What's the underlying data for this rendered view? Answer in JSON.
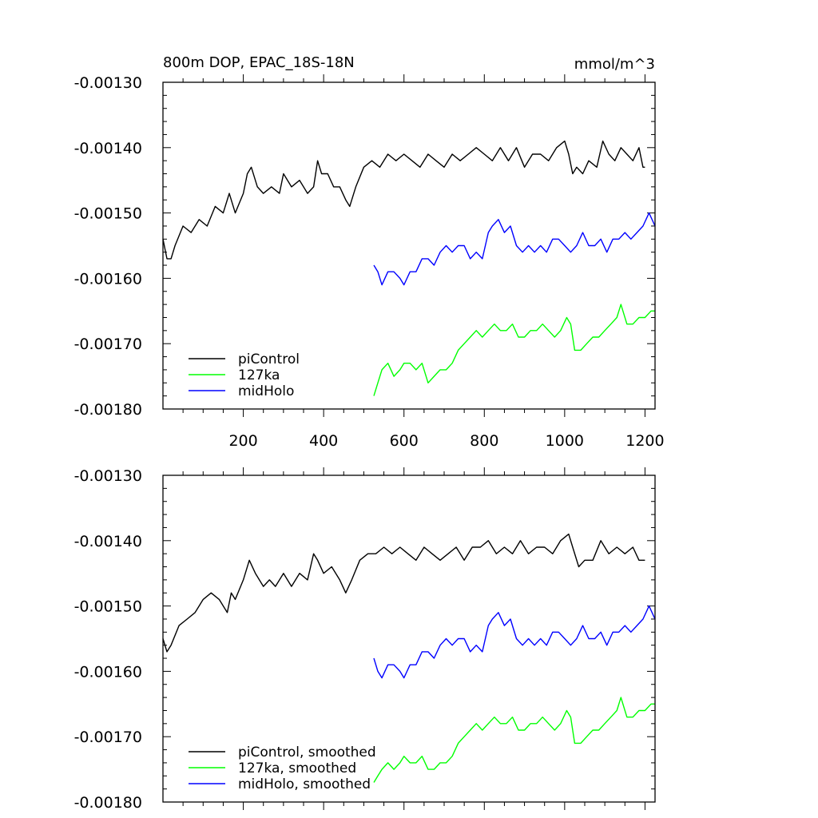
{
  "chart_data": [
    {
      "type": "line",
      "title_left": "800m DOP, EPAC_18S-18N",
      "title_right": "mmol/m^3",
      "xlim": [
        0,
        1225
      ],
      "ylim": [
        -0.0018,
        -0.0013
      ],
      "x_ticks": [
        200,
        400,
        600,
        800,
        1000,
        1200
      ],
      "x_tick_labels": [
        "200",
        "400",
        "600",
        "800",
        "1000",
        "1200"
      ],
      "y_ticks": [
        -0.0013,
        -0.0014,
        -0.0015,
        -0.0016,
        -0.0017,
        -0.0018
      ],
      "y_tick_labels": [
        "-0.00130",
        "-0.00140",
        "-0.00150",
        "-0.00160",
        "-0.00170",
        "-0.00180"
      ],
      "legend_position": "bottom-left",
      "series": [
        {
          "name": "piControl",
          "color": "#000000",
          "x": [
            0,
            10,
            20,
            30,
            50,
            70,
            90,
            110,
            130,
            150,
            165,
            180,
            200,
            210,
            220,
            235,
            250,
            270,
            290,
            300,
            320,
            340,
            360,
            375,
            385,
            395,
            410,
            425,
            440,
            455,
            465,
            480,
            500,
            520,
            540,
            560,
            580,
            600,
            620,
            640,
            660,
            680,
            700,
            720,
            740,
            760,
            780,
            800,
            820,
            840,
            860,
            880,
            900,
            920,
            940,
            960,
            980,
            1000,
            1010,
            1020,
            1030,
            1045,
            1060,
            1080,
            1095,
            1110,
            1125,
            1140,
            1155,
            1170,
            1185,
            1195,
            1200
          ],
          "values": [
            -0.00154,
            -0.00157,
            -0.00157,
            -0.00155,
            -0.00152,
            -0.00153,
            -0.00151,
            -0.00152,
            -0.00149,
            -0.0015,
            -0.00147,
            -0.0015,
            -0.00147,
            -0.00144,
            -0.00143,
            -0.00146,
            -0.00147,
            -0.00146,
            -0.00147,
            -0.00144,
            -0.00146,
            -0.00145,
            -0.00147,
            -0.00146,
            -0.00142,
            -0.00144,
            -0.00144,
            -0.00146,
            -0.00146,
            -0.00148,
            -0.00149,
            -0.00146,
            -0.00143,
            -0.00142,
            -0.00143,
            -0.00141,
            -0.00142,
            -0.00141,
            -0.00142,
            -0.00143,
            -0.00141,
            -0.00142,
            -0.00143,
            -0.00141,
            -0.00142,
            -0.00141,
            -0.0014,
            -0.00141,
            -0.00142,
            -0.0014,
            -0.00142,
            -0.0014,
            -0.00143,
            -0.00141,
            -0.00141,
            -0.00142,
            -0.0014,
            -0.00139,
            -0.00141,
            -0.00144,
            -0.00143,
            -0.00144,
            -0.00142,
            -0.00143,
            -0.00139,
            -0.00141,
            -0.00142,
            -0.0014,
            -0.00141,
            -0.00142,
            -0.0014,
            -0.00143,
            -0.00143
          ]
        },
        {
          "name": "midHolo",
          "color": "#0000ff",
          "x": [
            525,
            535,
            545,
            560,
            575,
            590,
            600,
            615,
            630,
            645,
            660,
            675,
            690,
            705,
            720,
            735,
            750,
            765,
            780,
            795,
            810,
            820,
            835,
            850,
            865,
            880,
            895,
            910,
            925,
            940,
            955,
            970,
            985,
            1000,
            1015,
            1030,
            1045,
            1060,
            1075,
            1090,
            1105,
            1120,
            1135,
            1150,
            1165,
            1180,
            1195,
            1210,
            1225
          ],
          "values": [
            -0.00158,
            -0.00159,
            -0.00161,
            -0.00159,
            -0.00159,
            -0.0016,
            -0.00161,
            -0.00159,
            -0.00159,
            -0.00157,
            -0.00157,
            -0.00158,
            -0.00156,
            -0.00155,
            -0.00156,
            -0.00155,
            -0.00155,
            -0.00157,
            -0.00156,
            -0.00157,
            -0.00153,
            -0.00152,
            -0.00151,
            -0.00153,
            -0.00152,
            -0.00155,
            -0.00156,
            -0.00155,
            -0.00156,
            -0.00155,
            -0.00156,
            -0.00154,
            -0.00154,
            -0.00155,
            -0.00156,
            -0.00155,
            -0.00153,
            -0.00155,
            -0.00155,
            -0.00154,
            -0.00156,
            -0.00154,
            -0.00154,
            -0.00153,
            -0.00154,
            -0.00153,
            -0.00152,
            -0.0015,
            -0.00152
          ]
        },
        {
          "name": "127ka",
          "color": "#00ff00",
          "x": [
            525,
            535,
            545,
            560,
            575,
            590,
            600,
            615,
            630,
            645,
            660,
            675,
            690,
            705,
            720,
            735,
            750,
            765,
            780,
            795,
            810,
            825,
            840,
            855,
            870,
            885,
            900,
            915,
            930,
            945,
            960,
            975,
            990,
            1005,
            1015,
            1025,
            1040,
            1055,
            1070,
            1085,
            1100,
            1115,
            1130,
            1140,
            1155,
            1170,
            1185,
            1200,
            1215,
            1225
          ],
          "values": [
            -0.00178,
            -0.00176,
            -0.00174,
            -0.00173,
            -0.00175,
            -0.00174,
            -0.00173,
            -0.00173,
            -0.00174,
            -0.00173,
            -0.00176,
            -0.00175,
            -0.00174,
            -0.00174,
            -0.00173,
            -0.00171,
            -0.0017,
            -0.00169,
            -0.00168,
            -0.00169,
            -0.00168,
            -0.00167,
            -0.00168,
            -0.00168,
            -0.00167,
            -0.00169,
            -0.00169,
            -0.00168,
            -0.00168,
            -0.00167,
            -0.00168,
            -0.00169,
            -0.00168,
            -0.00166,
            -0.00167,
            -0.00171,
            -0.00171,
            -0.0017,
            -0.00169,
            -0.00169,
            -0.00168,
            -0.00167,
            -0.00166,
            -0.00164,
            -0.00167,
            -0.00167,
            -0.00166,
            -0.00166,
            -0.00165,
            -0.00165
          ]
        }
      ]
    },
    {
      "type": "line",
      "title_left": "",
      "title_right": "",
      "xlim": [
        0,
        1225
      ],
      "ylim": [
        -0.0018,
        -0.0013
      ],
      "x_ticks": [
        200,
        400,
        600,
        800,
        1000,
        1200
      ],
      "x_tick_labels": [],
      "y_ticks": [
        -0.0013,
        -0.0014,
        -0.0015,
        -0.0016,
        -0.0017,
        -0.0018
      ],
      "y_tick_labels": [
        "-0.00130",
        "-0.00140",
        "-0.00150",
        "-0.00160",
        "-0.00170",
        "-0.00180"
      ],
      "legend_position": "bottom-left",
      "series": [
        {
          "name": "piControl, smoothed",
          "color": "#000000",
          "x": [
            0,
            10,
            20,
            40,
            60,
            80,
            100,
            120,
            140,
            160,
            170,
            180,
            200,
            215,
            230,
            250,
            265,
            280,
            300,
            320,
            340,
            360,
            375,
            385,
            400,
            420,
            440,
            455,
            470,
            490,
            510,
            530,
            550,
            570,
            590,
            610,
            630,
            650,
            670,
            690,
            710,
            730,
            750,
            770,
            790,
            810,
            830,
            850,
            870,
            890,
            910,
            930,
            950,
            970,
            990,
            1010,
            1020,
            1035,
            1050,
            1070,
            1090,
            1110,
            1130,
            1150,
            1170,
            1185,
            1200
          ],
          "values": [
            -0.00155,
            -0.00157,
            -0.00156,
            -0.00153,
            -0.00152,
            -0.00151,
            -0.00149,
            -0.00148,
            -0.00149,
            -0.00151,
            -0.00148,
            -0.00149,
            -0.00146,
            -0.00143,
            -0.00145,
            -0.00147,
            -0.00146,
            -0.00147,
            -0.00145,
            -0.00147,
            -0.00145,
            -0.00146,
            -0.00142,
            -0.00143,
            -0.00145,
            -0.00144,
            -0.00146,
            -0.00148,
            -0.00146,
            -0.00143,
            -0.00142,
            -0.00142,
            -0.00141,
            -0.00142,
            -0.00141,
            -0.00142,
            -0.00143,
            -0.00141,
            -0.00142,
            -0.00143,
            -0.00142,
            -0.00141,
            -0.00143,
            -0.00141,
            -0.00141,
            -0.0014,
            -0.00142,
            -0.00141,
            -0.00142,
            -0.0014,
            -0.00142,
            -0.00141,
            -0.00141,
            -0.00142,
            -0.0014,
            -0.00139,
            -0.00141,
            -0.00144,
            -0.00143,
            -0.00143,
            -0.0014,
            -0.00142,
            -0.00141,
            -0.00142,
            -0.00141,
            -0.00143,
            -0.00143
          ]
        },
        {
          "name": "midHolo, smoothed",
          "color": "#0000ff",
          "x": [
            525,
            535,
            545,
            560,
            575,
            590,
            600,
            615,
            630,
            645,
            660,
            675,
            690,
            705,
            720,
            735,
            750,
            765,
            780,
            795,
            810,
            820,
            835,
            850,
            865,
            880,
            895,
            910,
            925,
            940,
            955,
            970,
            985,
            1000,
            1015,
            1030,
            1045,
            1060,
            1075,
            1090,
            1105,
            1120,
            1135,
            1150,
            1165,
            1180,
            1195,
            1210,
            1225
          ],
          "values": [
            -0.00158,
            -0.0016,
            -0.00161,
            -0.00159,
            -0.00159,
            -0.0016,
            -0.00161,
            -0.00159,
            -0.00159,
            -0.00157,
            -0.00157,
            -0.00158,
            -0.00156,
            -0.00155,
            -0.00156,
            -0.00155,
            -0.00155,
            -0.00157,
            -0.00156,
            -0.00157,
            -0.00153,
            -0.00152,
            -0.00151,
            -0.00153,
            -0.00152,
            -0.00155,
            -0.00156,
            -0.00155,
            -0.00156,
            -0.00155,
            -0.00156,
            -0.00154,
            -0.00154,
            -0.00155,
            -0.00156,
            -0.00155,
            -0.00153,
            -0.00155,
            -0.00155,
            -0.00154,
            -0.00156,
            -0.00154,
            -0.00154,
            -0.00153,
            -0.00154,
            -0.00153,
            -0.00152,
            -0.0015,
            -0.00152
          ]
        },
        {
          "name": "127ka, smoothed",
          "color": "#00ff00",
          "x": [
            525,
            535,
            545,
            560,
            575,
            590,
            600,
            615,
            630,
            645,
            660,
            675,
            690,
            705,
            720,
            735,
            750,
            765,
            780,
            795,
            810,
            825,
            840,
            855,
            870,
            885,
            900,
            915,
            930,
            945,
            960,
            975,
            990,
            1005,
            1015,
            1025,
            1040,
            1055,
            1070,
            1085,
            1100,
            1115,
            1130,
            1140,
            1155,
            1170,
            1185,
            1200,
            1215,
            1225
          ],
          "values": [
            -0.00177,
            -0.00176,
            -0.00175,
            -0.00174,
            -0.00175,
            -0.00174,
            -0.00173,
            -0.00174,
            -0.00174,
            -0.00173,
            -0.00175,
            -0.00175,
            -0.00174,
            -0.00174,
            -0.00173,
            -0.00171,
            -0.0017,
            -0.00169,
            -0.00168,
            -0.00169,
            -0.00168,
            -0.00167,
            -0.00168,
            -0.00168,
            -0.00167,
            -0.00169,
            -0.00169,
            -0.00168,
            -0.00168,
            -0.00167,
            -0.00168,
            -0.00169,
            -0.00168,
            -0.00166,
            -0.00167,
            -0.00171,
            -0.00171,
            -0.0017,
            -0.00169,
            -0.00169,
            -0.00168,
            -0.00167,
            -0.00166,
            -0.00164,
            -0.00167,
            -0.00167,
            -0.00166,
            -0.00166,
            -0.00165,
            -0.00165
          ]
        }
      ]
    }
  ]
}
